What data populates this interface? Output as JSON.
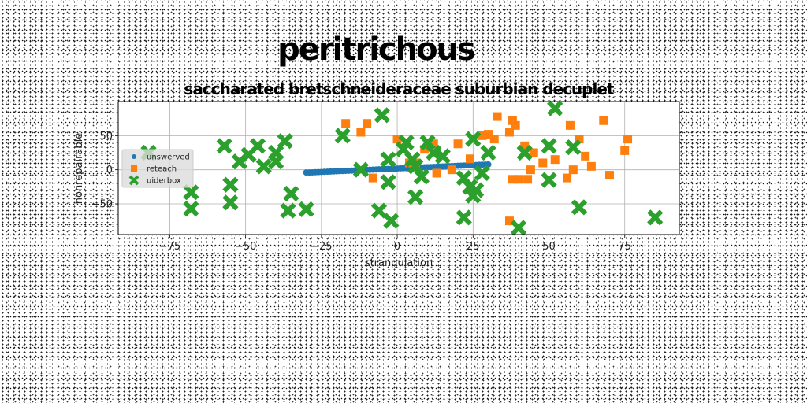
{
  "chart_data": {
    "type": "scatter",
    "suptitle": "peritrichous",
    "title": "saccharated bretschneideraceae suburbian decuplet",
    "xlabel": "strangulation",
    "ylabel": "nonrepairable",
    "xlim": [
      -92,
      93
    ],
    "ylim": [
      -95,
      100
    ],
    "xticks": [
      -75,
      -50,
      -25,
      0,
      25,
      50,
      75
    ],
    "yticks": [
      -50,
      0,
      50
    ],
    "grid": true,
    "legend_position": "center-left",
    "series": [
      {
        "name": "unswerved",
        "marker": "circle",
        "color": "#1f77b4",
        "points": [
          [
            -30,
            -4
          ],
          [
            -29,
            -4
          ],
          [
            -28,
            -3.8
          ],
          [
            -27,
            -3.6
          ],
          [
            -26,
            -3.4
          ],
          [
            -25,
            -3.2
          ],
          [
            -24,
            -3
          ],
          [
            -23,
            -2.8
          ],
          [
            -22,
            -2.6
          ],
          [
            -21,
            -2.4
          ],
          [
            -20,
            -2.2
          ],
          [
            -19,
            -2
          ],
          [
            -18,
            -1.8
          ],
          [
            -17,
            -1.6
          ],
          [
            -16,
            -1.4
          ],
          [
            -15,
            -1.2
          ],
          [
            -14,
            -1
          ],
          [
            -13,
            -0.8
          ],
          [
            -12,
            -0.6
          ],
          [
            -11,
            -0.4
          ],
          [
            -10,
            -0.2
          ],
          [
            -9,
            0
          ],
          [
            -8,
            0.2
          ],
          [
            -7,
            0.4
          ],
          [
            -6,
            0.6
          ],
          [
            -5,
            0.8
          ],
          [
            -4,
            1
          ],
          [
            -3,
            1.2
          ],
          [
            -2,
            1.4
          ],
          [
            -1,
            1.6
          ],
          [
            0,
            1.8
          ],
          [
            1,
            2
          ],
          [
            2,
            2.2
          ],
          [
            3,
            2.4
          ],
          [
            4,
            2.6
          ],
          [
            5,
            2.8
          ],
          [
            6,
            3
          ],
          [
            7,
            3.2
          ],
          [
            8,
            3.4
          ],
          [
            9,
            3.6
          ],
          [
            10,
            3.8
          ],
          [
            11,
            4
          ],
          [
            12,
            4.2
          ],
          [
            13,
            4.4
          ],
          [
            14,
            4.6
          ],
          [
            15,
            4.8
          ],
          [
            16,
            5
          ],
          [
            17,
            5.2
          ],
          [
            18,
            5.4
          ],
          [
            19,
            5.6
          ],
          [
            20,
            5.8
          ],
          [
            21,
            6
          ],
          [
            22,
            6.2
          ],
          [
            23,
            6.4
          ],
          [
            24,
            6.6
          ],
          [
            25,
            6.8
          ],
          [
            26,
            7
          ],
          [
            27,
            7.2
          ],
          [
            28,
            7.4
          ],
          [
            29,
            7.6
          ],
          [
            30,
            7.8
          ]
        ]
      },
      {
        "name": "reteach",
        "marker": "square",
        "color": "#ff7f0e",
        "points": [
          [
            -17,
            68
          ],
          [
            -10,
            68
          ],
          [
            -12,
            55
          ],
          [
            -8,
            -12
          ],
          [
            0,
            45
          ],
          [
            4,
            10
          ],
          [
            6,
            10
          ],
          [
            9,
            30
          ],
          [
            10,
            33
          ],
          [
            12,
            38
          ],
          [
            13,
            -5
          ],
          [
            18,
            0
          ],
          [
            20,
            38
          ],
          [
            24,
            16
          ],
          [
            28,
            50
          ],
          [
            30,
            52
          ],
          [
            32,
            45
          ],
          [
            33,
            78
          ],
          [
            37,
            55
          ],
          [
            38,
            72
          ],
          [
            38,
            -14
          ],
          [
            39,
            65
          ],
          [
            40,
            -14
          ],
          [
            42,
            35
          ],
          [
            43,
            -14
          ],
          [
            44,
            0
          ],
          [
            45,
            25
          ],
          [
            48,
            10
          ],
          [
            52,
            15
          ],
          [
            56,
            -12
          ],
          [
            57,
            65
          ],
          [
            58,
            0
          ],
          [
            60,
            45
          ],
          [
            62,
            20
          ],
          [
            64,
            5
          ],
          [
            68,
            72
          ],
          [
            70,
            -8
          ],
          [
            75,
            28
          ],
          [
            76,
            45
          ],
          [
            37,
            -75
          ]
        ]
      },
      {
        "name": "uiderbox",
        "marker": "x",
        "color": "#2ca02c",
        "points": [
          [
            -82,
            25
          ],
          [
            -68,
            -33
          ],
          [
            -68,
            -57
          ],
          [
            -57,
            35
          ],
          [
            -55,
            -22
          ],
          [
            -55,
            -48
          ],
          [
            -52,
            12
          ],
          [
            -49,
            22
          ],
          [
            -46,
            35
          ],
          [
            -44,
            5
          ],
          [
            -40,
            25
          ],
          [
            -40,
            12
          ],
          [
            -37,
            42
          ],
          [
            -35,
            -35
          ],
          [
            -36,
            -60
          ],
          [
            -30,
            -58
          ],
          [
            -18,
            50
          ],
          [
            -12,
            0
          ],
          [
            -6,
            -60
          ],
          [
            -5,
            80
          ],
          [
            -3,
            -18
          ],
          [
            -2,
            -75
          ],
          [
            -3,
            15
          ],
          [
            2,
            30
          ],
          [
            3,
            40
          ],
          [
            5,
            15
          ],
          [
            6,
            -40
          ],
          [
            6,
            5
          ],
          [
            8,
            -10
          ],
          [
            10,
            40
          ],
          [
            12,
            25
          ],
          [
            15,
            20
          ],
          [
            22,
            -12
          ],
          [
            22,
            -70
          ],
          [
            24,
            -25
          ],
          [
            25,
            45
          ],
          [
            25,
            -38
          ],
          [
            26,
            -30
          ],
          [
            28,
            -5
          ],
          [
            30,
            25
          ],
          [
            40,
            -85
          ],
          [
            42,
            25
          ],
          [
            50,
            -15
          ],
          [
            50,
            35
          ],
          [
            52,
            90
          ],
          [
            58,
            33
          ],
          [
            60,
            -55
          ],
          [
            85,
            -70
          ]
        ]
      }
    ]
  }
}
